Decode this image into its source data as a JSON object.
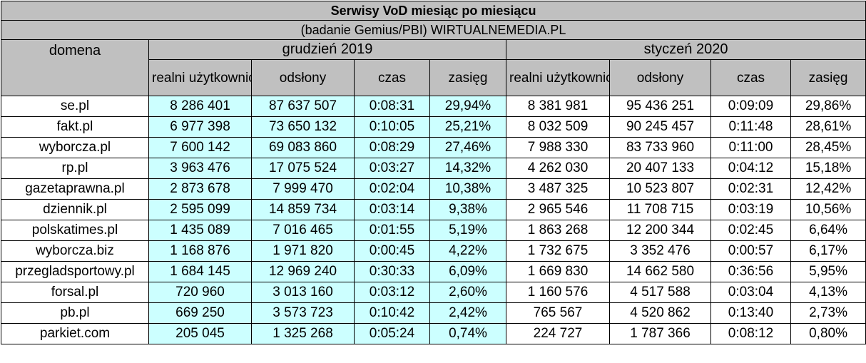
{
  "title": "Serwisy VoD miesiąc po miesiącu",
  "subtitle": "(badanie Gemius/PBI) WIRTUALNEMEDIA.PL",
  "domain_header": "domena",
  "periods": [
    "grudzień 2019",
    "styczeń 2020"
  ],
  "columns": [
    "realni użytkownicy",
    "odsłony",
    "czas",
    "zasięg"
  ],
  "rows": [
    {
      "domena": "se.pl",
      "dec": [
        "8 286 401",
        "87 637 507",
        "0:08:31",
        "29,94%"
      ],
      "jan": [
        "8 381 981",
        "95 436 251",
        "0:09:09",
        "29,86%"
      ]
    },
    {
      "domena": "fakt.pl",
      "dec": [
        "6 977 398",
        "73 650 132",
        "0:10:05",
        "25,21%"
      ],
      "jan": [
        "8 032 509",
        "90 245 457",
        "0:11:48",
        "28,61%"
      ]
    },
    {
      "domena": "wyborcza.pl",
      "dec": [
        "7 600 142",
        "69 083 860",
        "0:08:29",
        "27,46%"
      ],
      "jan": [
        "7 988 330",
        "83 733 960",
        "0:11:00",
        "28,45%"
      ]
    },
    {
      "domena": "rp.pl",
      "dec": [
        "3 963 476",
        "17 075 524",
        "0:03:27",
        "14,32%"
      ],
      "jan": [
        "4 262 030",
        "20 407 133",
        "0:04:12",
        "15,18%"
      ]
    },
    {
      "domena": "gazetaprawna.pl",
      "dec": [
        "2 873 678",
        "7 999 470",
        "0:02:04",
        "10,38%"
      ],
      "jan": [
        "3 487 325",
        "10 523 807",
        "0:02:31",
        "12,42%"
      ]
    },
    {
      "domena": "dziennik.pl",
      "dec": [
        "2 595 099",
        "14 859 734",
        "0:03:14",
        "9,38%"
      ],
      "jan": [
        "2 965 546",
        "11 708 715",
        "0:03:19",
        "10,56%"
      ]
    },
    {
      "domena": "polskatimes.pl",
      "dec": [
        "1 435 089",
        "7 016 465",
        "0:01:55",
        "5,19%"
      ],
      "jan": [
        "1 863 268",
        "12 200 344",
        "0:02:45",
        "6,64%"
      ]
    },
    {
      "domena": "wyborcza.biz",
      "dec": [
        "1 168 876",
        "1 971 820",
        "0:00:45",
        "4,22%"
      ],
      "jan": [
        "1 732 675",
        "3 352 476",
        "0:00:57",
        "6,17%"
      ]
    },
    {
      "domena": "przegladsportowy.pl",
      "dec": [
        "1 684 145",
        "12 969 240",
        "0:30:33",
        "6,09%"
      ],
      "jan": [
        "1 669 830",
        "14 662 580",
        "0:36:56",
        "5,95%"
      ]
    },
    {
      "domena": "forsal.pl",
      "dec": [
        "720 960",
        "3 013 160",
        "0:03:12",
        "2,60%"
      ],
      "jan": [
        "1 160 576",
        "4 517 588",
        "0:03:04",
        "4,13%"
      ]
    },
    {
      "domena": "pb.pl",
      "dec": [
        "669 250",
        "3 573 723",
        "0:10:42",
        "2,42%"
      ],
      "jan": [
        "765 567",
        "4 520 862",
        "0:13:40",
        "2,73%"
      ]
    },
    {
      "domena": "parkiet.com",
      "dec": [
        "205 045",
        "1 325 268",
        "0:05:24",
        "0,74%"
      ],
      "jan": [
        "224 727",
        "1 787 366",
        "0:08:12",
        "0,80%"
      ]
    }
  ],
  "colors": {
    "header_bg": "#c0c0c0",
    "december_bg": "#ccffff",
    "january_bg": "#ffffff"
  }
}
